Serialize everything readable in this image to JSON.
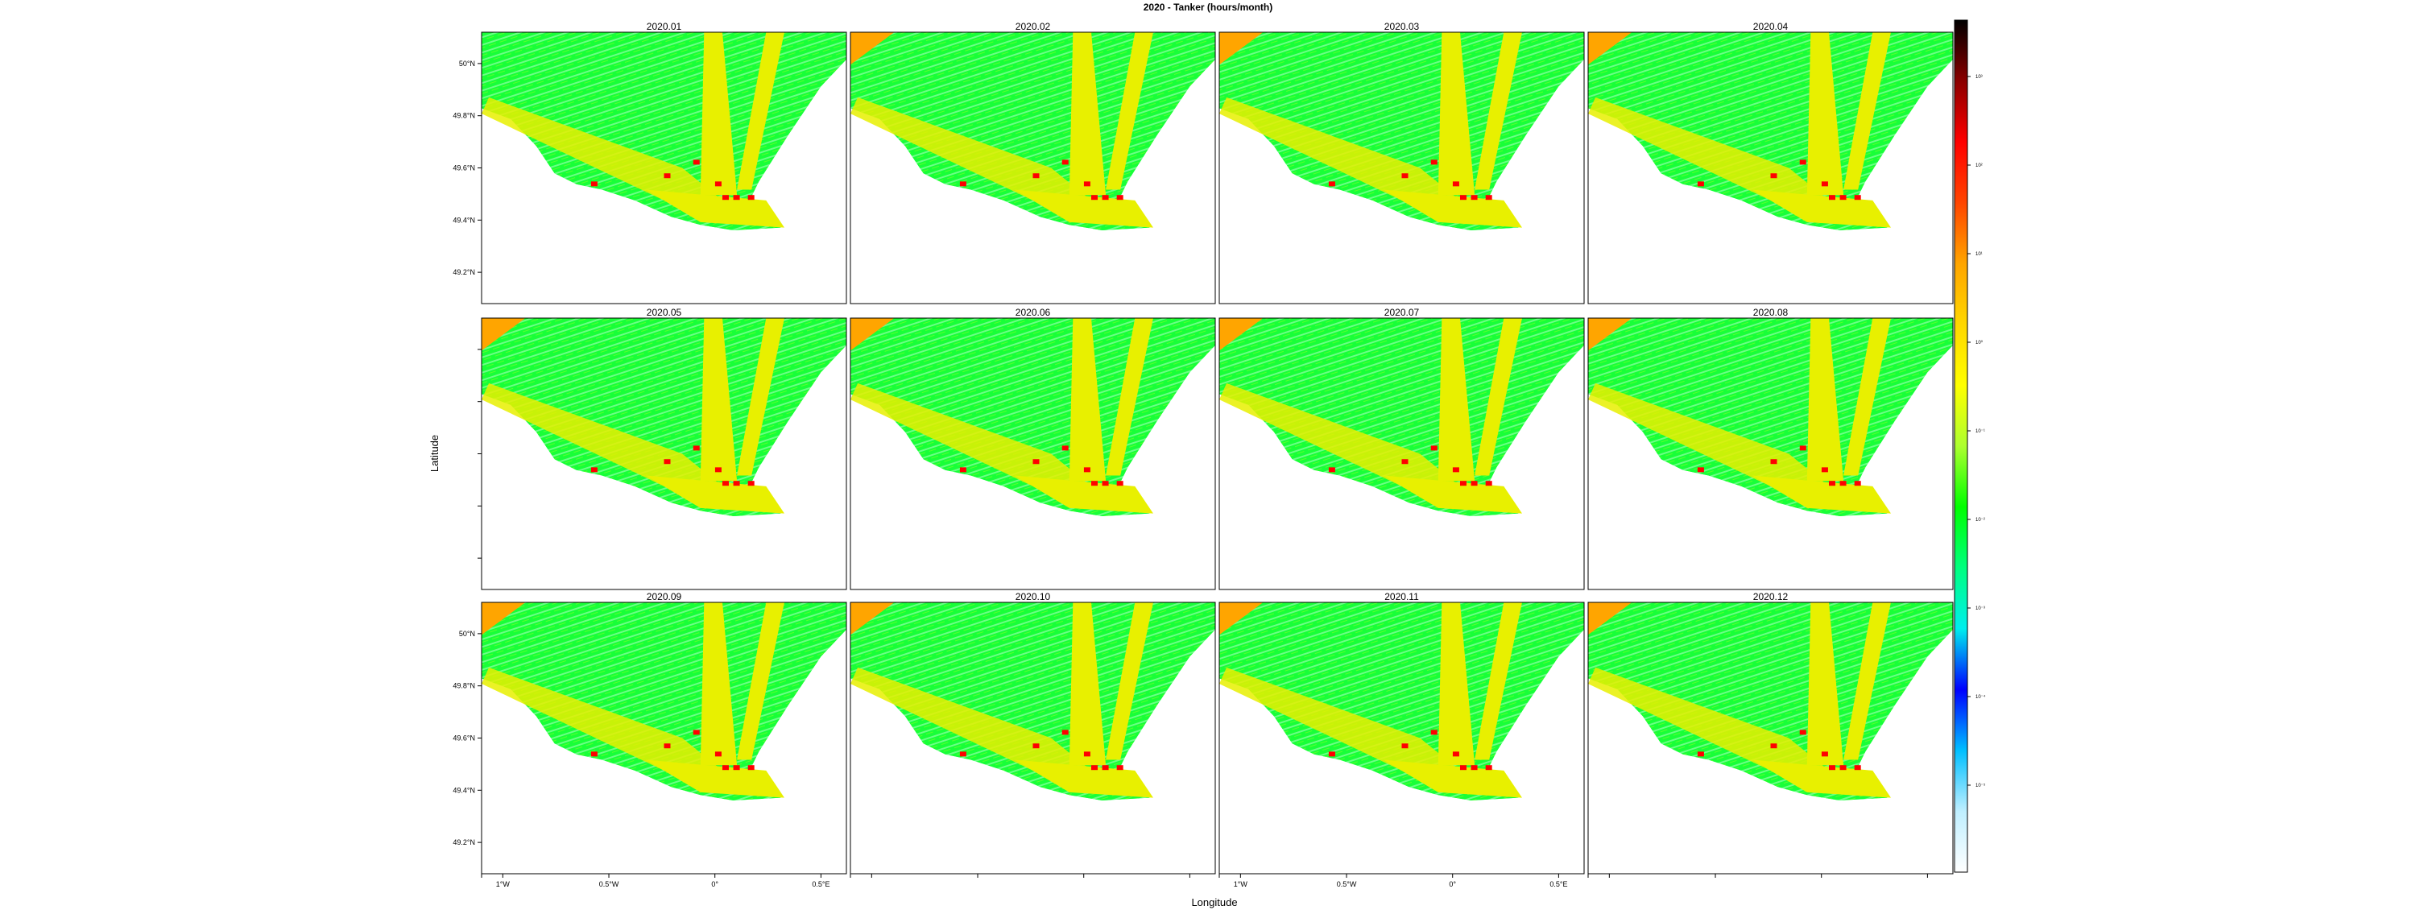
{
  "title": "2020 - Tanker (hours/month)",
  "xlabel": "Longitude",
  "ylabel": "Latitude",
  "panels": [
    "2020.01",
    "2020.02",
    "2020.03",
    "2020.04",
    "2020.05",
    "2020.06",
    "2020.07",
    "2020.08",
    "2020.09",
    "2020.10",
    "2020.11",
    "2020.12"
  ],
  "lat_ticks": [
    "50°N",
    "49.8°N",
    "49.6°N",
    "49.4°N",
    "49.2°N"
  ],
  "lat_values": [
    50.0,
    49.8,
    49.6,
    49.4,
    49.2
  ],
  "lon_ticks": [
    "1°W",
    "0.5°W",
    "0°",
    "0.5°E"
  ],
  "lon_values": [
    -1.0,
    -0.5,
    0.0,
    0.5
  ],
  "colorbar": {
    "ticks": [
      "10³",
      "10²",
      "10¹",
      "10⁰",
      "10⁻¹",
      "10⁻²",
      "10⁻³",
      "10⁻⁴",
      "10⁻⁵"
    ],
    "colors": [
      "#ffffff",
      "#bfefff",
      "#00bfff",
      "#0000ff",
      "#00eeee",
      "#00ff7f",
      "#00ff00",
      "#adff2f",
      "#ffff00",
      "#ffd700",
      "#ffa500",
      "#ff4500",
      "#ff0000",
      "#8b0000",
      "#000000"
    ]
  },
  "colors": {
    "land": "#ffffff",
    "background": "#00ff44",
    "high_density": "#e8f000",
    "port": "#ff0000",
    "offshore": "#ffa500"
  }
}
